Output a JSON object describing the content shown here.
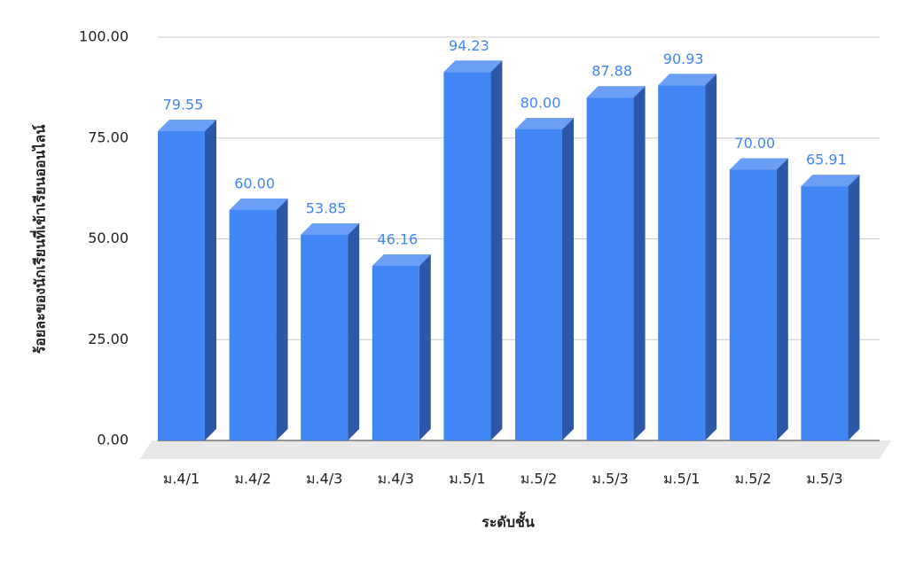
{
  "chart_data": {
    "type": "bar3d",
    "y_label": "ร้อยละของนักเรียนที่เข้าเรียนออนไลน์",
    "x_label": "ระดับชั้น",
    "categories": [
      "ม.4/1",
      "ม.4/2",
      "ม.4/3",
      "ม.4/3",
      "ม.5/1",
      "ม.5/2",
      "ม.5/3",
      "ม.5/1",
      "ม.5/2",
      "ม.5/3"
    ],
    "values": [
      79.55,
      60,
      53.85,
      46.16,
      94.23,
      80,
      87.88,
      90.93,
      70,
      65.91
    ],
    "value_labels": [
      "79.55",
      "60.00",
      "53.85",
      "46.16",
      "94.23",
      "80.00",
      "87.88",
      "90.93",
      "70.00",
      "65.91"
    ],
    "color": "#4285f4",
    "ylim": [
      0,
      100
    ],
    "yticks": [
      {
        "value": 0,
        "label": "0.00"
      },
      {
        "value": 25,
        "label": "25.00"
      },
      {
        "value": 50,
        "label": "50.00"
      },
      {
        "value": 75,
        "label": "75.00"
      },
      {
        "value": 100,
        "label": "100.00"
      }
    ],
    "grid": true
  }
}
